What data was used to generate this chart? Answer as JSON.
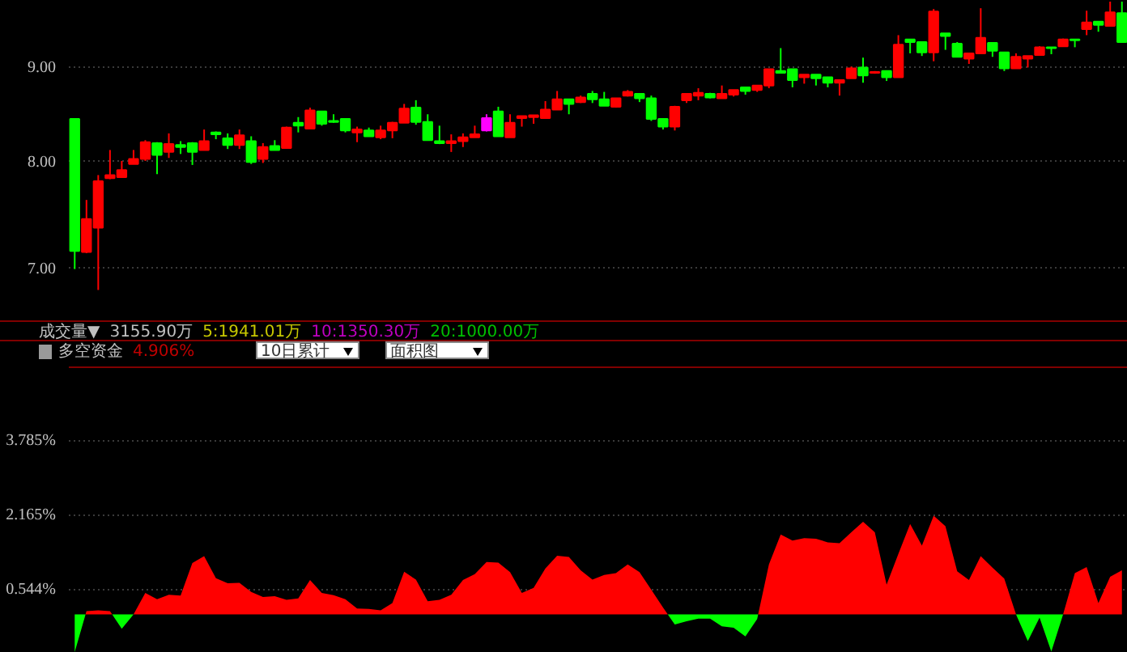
{
  "chart_data": [
    {
      "type": "candlestick",
      "log": true,
      "grid": "y",
      "annotations": [
        "成交量▼",
        "3155.90万",
        "5:1941.01万",
        "10:1350.30万",
        "20:1000.00万"
      ],
      "categories": [
        null,
        null,
        null,
        null,
        null,
        null,
        null,
        null,
        null,
        null,
        null,
        null,
        null,
        null,
        null,
        null,
        null,
        null,
        null,
        null,
        null,
        null,
        null,
        null,
        null,
        null,
        null,
        null,
        null,
        null,
        null,
        null,
        null,
        null,
        null,
        null,
        null,
        null,
        null,
        null,
        null,
        null,
        null,
        null,
        null,
        null,
        null,
        null,
        null,
        null,
        null,
        null,
        null,
        null,
        null,
        null,
        null,
        null,
        null,
        null,
        null,
        null,
        null,
        null,
        null,
        null,
        null,
        null,
        null,
        null,
        null,
        null,
        null,
        null,
        null,
        null,
        null,
        null,
        null,
        null,
        null,
        null,
        null,
        null,
        null,
        null,
        null,
        null,
        null,
        null
      ],
      "ohlc": [
        [
          8.43,
          8.43,
          6.99,
          7.15
        ],
        [
          7.14,
          7.62,
          7.13,
          7.44
        ],
        [
          7.36,
          7.86,
          6.81,
          7.8
        ],
        [
          7.83,
          8.11,
          7.82,
          7.86
        ],
        [
          7.84,
          8.0,
          7.84,
          7.91
        ],
        [
          7.97,
          8.11,
          7.97,
          8.02
        ],
        [
          8.02,
          8.21,
          8.0,
          8.19
        ],
        [
          8.18,
          8.19,
          7.87,
          8.06
        ],
        [
          8.09,
          8.28,
          8.03,
          8.17
        ],
        [
          8.16,
          8.2,
          8.07,
          8.14
        ],
        [
          8.18,
          8.19,
          7.96,
          8.09
        ],
        [
          8.11,
          8.32,
          8.11,
          8.2
        ],
        [
          8.29,
          8.3,
          8.22,
          8.27
        ],
        [
          8.23,
          8.28,
          8.12,
          8.16
        ],
        [
          8.16,
          8.32,
          8.12,
          8.26
        ],
        [
          8.2,
          8.25,
          7.97,
          7.99
        ],
        [
          8.02,
          8.18,
          7.98,
          8.14
        ],
        [
          8.15,
          8.21,
          8.11,
          8.11
        ],
        [
          8.13,
          8.35,
          8.13,
          8.34
        ],
        [
          8.39,
          8.45,
          8.29,
          8.36
        ],
        [
          8.33,
          8.55,
          8.33,
          8.52
        ],
        [
          8.51,
          8.51,
          8.36,
          8.38
        ],
        [
          8.41,
          8.48,
          8.39,
          8.4
        ],
        [
          8.43,
          8.43,
          8.29,
          8.31
        ],
        [
          8.29,
          8.35,
          8.19,
          8.32
        ],
        [
          8.31,
          8.34,
          8.25,
          8.25
        ],
        [
          8.24,
          8.36,
          8.22,
          8.31
        ],
        [
          8.31,
          8.4,
          8.23,
          8.39
        ],
        [
          8.39,
          8.59,
          8.39,
          8.54
        ],
        [
          8.55,
          8.63,
          8.37,
          8.4
        ],
        [
          8.4,
          8.48,
          8.21,
          8.21
        ],
        [
          8.2,
          8.36,
          8.17,
          8.18
        ],
        [
          8.18,
          8.27,
          8.09,
          8.2
        ],
        [
          8.2,
          8.28,
          8.14,
          8.24
        ],
        [
          8.24,
          8.36,
          8.24,
          8.27
        ],
        [
          8.31,
          8.48,
          8.3,
          8.44
        ],
        [
          8.51,
          8.56,
          8.25,
          8.25
        ],
        [
          8.24,
          8.48,
          8.24,
          8.39
        ],
        [
          8.44,
          8.46,
          8.35,
          8.46
        ],
        [
          8.45,
          8.47,
          8.38,
          8.47
        ],
        [
          8.44,
          8.62,
          8.44,
          8.53
        ],
        [
          8.53,
          8.73,
          8.53,
          8.64
        ],
        [
          8.64,
          8.64,
          8.48,
          8.59
        ],
        [
          8.61,
          8.68,
          8.6,
          8.66
        ],
        [
          8.7,
          8.73,
          8.6,
          8.64
        ],
        [
          8.64,
          8.72,
          8.57,
          8.57
        ],
        [
          8.56,
          8.65,
          8.55,
          8.65
        ],
        [
          8.68,
          8.74,
          8.67,
          8.72
        ],
        [
          8.7,
          8.7,
          8.61,
          8.65
        ],
        [
          8.65,
          8.68,
          8.41,
          8.43
        ],
        [
          8.43,
          8.43,
          8.32,
          8.35
        ],
        [
          8.35,
          8.57,
          8.31,
          8.56
        ],
        [
          8.63,
          8.7,
          8.6,
          8.7
        ],
        [
          8.68,
          8.76,
          8.63,
          8.71
        ],
        [
          8.7,
          8.71,
          8.65,
          8.66
        ],
        [
          8.65,
          8.79,
          8.65,
          8.7
        ],
        [
          8.69,
          8.74,
          8.67,
          8.74
        ],
        [
          8.77,
          8.77,
          8.69,
          8.73
        ],
        [
          8.74,
          8.79,
          8.72,
          8.79
        ],
        [
          8.79,
          8.97,
          8.76,
          8.97
        ],
        [
          8.95,
          9.21,
          8.93,
          8.93
        ],
        [
          8.97,
          8.97,
          8.77,
          8.85
        ],
        [
          8.88,
          8.91,
          8.81,
          8.91
        ],
        [
          8.91,
          8.91,
          8.79,
          8.87
        ],
        [
          8.88,
          8.88,
          8.77,
          8.82
        ],
        [
          8.82,
          8.85,
          8.68,
          8.85
        ],
        [
          8.87,
          9.0,
          8.87,
          8.98
        ],
        [
          8.99,
          9.1,
          8.82,
          8.9
        ],
        [
          8.93,
          8.95,
          8.92,
          8.94
        ],
        [
          8.95,
          8.95,
          8.84,
          8.88
        ],
        [
          8.88,
          9.36,
          8.88,
          9.25
        ],
        [
          9.31,
          9.31,
          9.15,
          9.28
        ],
        [
          9.28,
          9.28,
          9.12,
          9.16
        ],
        [
          9.16,
          9.67,
          9.06,
          9.64
        ],
        [
          9.38,
          9.38,
          9.19,
          9.35
        ],
        [
          9.26,
          9.28,
          9.11,
          9.11
        ],
        [
          9.09,
          9.15,
          9.03,
          9.15
        ],
        [
          9.15,
          9.68,
          9.15,
          9.33
        ],
        [
          9.27,
          9.27,
          9.11,
          9.18
        ],
        [
          9.16,
          9.16,
          8.95,
          8.98
        ],
        [
          8.98,
          9.15,
          8.98,
          9.11
        ],
        [
          9.09,
          9.12,
          8.99,
          9.12
        ],
        [
          9.13,
          9.23,
          9.13,
          9.22
        ],
        [
          9.22,
          9.22,
          9.14,
          9.21
        ],
        [
          9.23,
          9.32,
          9.23,
          9.31
        ],
        [
          9.31,
          9.31,
          9.22,
          9.3
        ],
        [
          9.43,
          9.65,
          9.36,
          9.51
        ],
        [
          9.52,
          9.52,
          9.4,
          9.48
        ],
        [
          9.47,
          9.76,
          9.47,
          9.63
        ],
        [
          9.62,
          9.76,
          9.28,
          9.28
        ]
      ],
      "colors": [
        "#00ff00",
        "#ff0000",
        "#ff0000",
        "#ff0000",
        "#ff0000",
        "#ff0000",
        "#ff0000",
        "#00ff00",
        "#ff0000",
        "#00ff00",
        "#00ff00",
        "#ff0000",
        "#00ff00",
        "#00ff00",
        "#ff0000",
        "#00ff00",
        "#ff0000",
        "#00ff00",
        "#ff0000",
        "#00ff00",
        "#ff0000",
        "#00ff00",
        "#00ff00",
        "#00ff00",
        "#ff0000",
        "#00ff00",
        "#ff0000",
        "#ff0000",
        "#ff0000",
        "#00ff00",
        "#00ff00",
        "#00ff00",
        "#ff0000",
        "#ff0000",
        "#ff0000",
        "#ff00ff",
        "#00ff00",
        "#ff0000",
        "#ff0000",
        "#ff0000",
        "#ff0000",
        "#ff0000",
        "#00ff00",
        "#ff0000",
        "#00ff00",
        "#00ff00",
        "#ff0000",
        "#ff0000",
        "#00ff00",
        "#00ff00",
        "#00ff00",
        "#ff0000",
        "#ff0000",
        "#ff0000",
        "#00ff00",
        "#ff0000",
        "#ff0000",
        "#00ff00",
        "#ff0000",
        "#ff0000",
        "#00ff00",
        "#00ff00",
        "#ff0000",
        "#00ff00",
        "#00ff00",
        "#ff0000",
        "#ff0000",
        "#00ff00",
        "#ff0000",
        "#00ff00",
        "#ff0000",
        "#00ff00",
        "#00ff00",
        "#ff0000",
        "#00ff00",
        "#00ff00",
        "#ff0000",
        "#ff0000",
        "#00ff00",
        "#00ff00",
        "#ff0000",
        "#ff0000",
        "#ff0000",
        "#00ff00",
        "#ff0000",
        "#00ff00",
        "#ff0000",
        "#00ff00",
        "#ff0000",
        "#00ff00"
      ],
      "ylim": [
        6.55,
        9.77
      ],
      "yticks": [
        {
          "value": 7,
          "label": "7.00"
        },
        {
          "value": 8,
          "label": "8.00"
        },
        {
          "value": 9,
          "label": "9.00"
        }
      ]
    },
    {
      "type": "area",
      "grid": "y",
      "title": "多空资金",
      "annotations": [
        "4.906%",
        "10日累计",
        "面积图"
      ],
      "categories": [
        null,
        null,
        null,
        null,
        null,
        null,
        null,
        null,
        null,
        null,
        null,
        null,
        null,
        null,
        null,
        null,
        null,
        null,
        null,
        null,
        null,
        null,
        null,
        null,
        null,
        null,
        null,
        null,
        null,
        null,
        null,
        null,
        null,
        null,
        null,
        null,
        null,
        null,
        null,
        null,
        null,
        null,
        null,
        null,
        null,
        null,
        null,
        null,
        null,
        null,
        null,
        null,
        null,
        null,
        null,
        null,
        null,
        null,
        null,
        null,
        null,
        null,
        null,
        null,
        null,
        null,
        null,
        null,
        null,
        null,
        null,
        null,
        null,
        null,
        null,
        null,
        null,
        null,
        null,
        null,
        null,
        null,
        null,
        null,
        null,
        null,
        null,
        null,
        null,
        null
      ],
      "series": [
        {
          "color": "#ff0000",
          "values": [
            null,
            0.07,
            0.09,
            0.07,
            null,
            0,
            0.47,
            0.33,
            0.43,
            0.41,
            1.12,
            1.27,
            0.79,
            0.68,
            0.69,
            0.49,
            0.38,
            0.4,
            0.32,
            0.35,
            0.75,
            0.47,
            0.42,
            0.33,
            0.13,
            0.12,
            0.09,
            0.25,
            0.93,
            0.76,
            0.29,
            0.32,
            0.43,
            0.75,
            0.88,
            1.14,
            1.13,
            0.92,
            0.47,
            0.58,
            1.0,
            1.28,
            1.25,
            0.96,
            0.76,
            0.86,
            0.9,
            1.09,
            0.92,
            0.54,
            0.15,
            null,
            null,
            null,
            null,
            null,
            null,
            null,
            null,
            1.09,
            1.74,
            1.61,
            1.66,
            1.65,
            1.57,
            1.55,
            1.79,
            2.02,
            1.79,
            0.65,
            1.32,
            1.97,
            1.5,
            2.15,
            1.92,
            0.94,
            0.75,
            1.27,
            1.02,
            0.78,
            0,
            null,
            null,
            null,
            0,
            0.9,
            1.03,
            0.25,
            0.82,
            0.96
          ]
        },
        {
          "color": "#00ff00",
          "values": [
            -0.82,
            null,
            null,
            null,
            -0.31,
            0,
            null,
            null,
            null,
            null,
            null,
            null,
            null,
            null,
            null,
            null,
            null,
            null,
            null,
            null,
            null,
            null,
            null,
            null,
            null,
            null,
            null,
            null,
            null,
            null,
            null,
            null,
            null,
            null,
            null,
            null,
            null,
            null,
            null,
            null,
            null,
            null,
            null,
            null,
            null,
            null,
            null,
            null,
            null,
            null,
            null,
            -0.22,
            -0.15,
            -0.09,
            -0.09,
            -0.26,
            -0.29,
            -0.48,
            -0.1,
            null,
            null,
            null,
            null,
            null,
            null,
            null,
            null,
            null,
            null,
            null,
            null,
            null,
            null,
            null,
            null,
            null,
            null,
            null,
            null,
            null,
            0,
            -0.58,
            -0.07,
            -0.81,
            0,
            null,
            null,
            null,
            null,
            null
          ]
        }
      ],
      "ylim": [
        -0.835,
        5.4
      ],
      "yticks": [
        {
          "value": 0.544,
          "label": "0.544%"
        },
        {
          "value": 2.165,
          "label": "2.165%"
        },
        {
          "value": 3.785,
          "label": "3.785%"
        }
      ]
    }
  ]
}
